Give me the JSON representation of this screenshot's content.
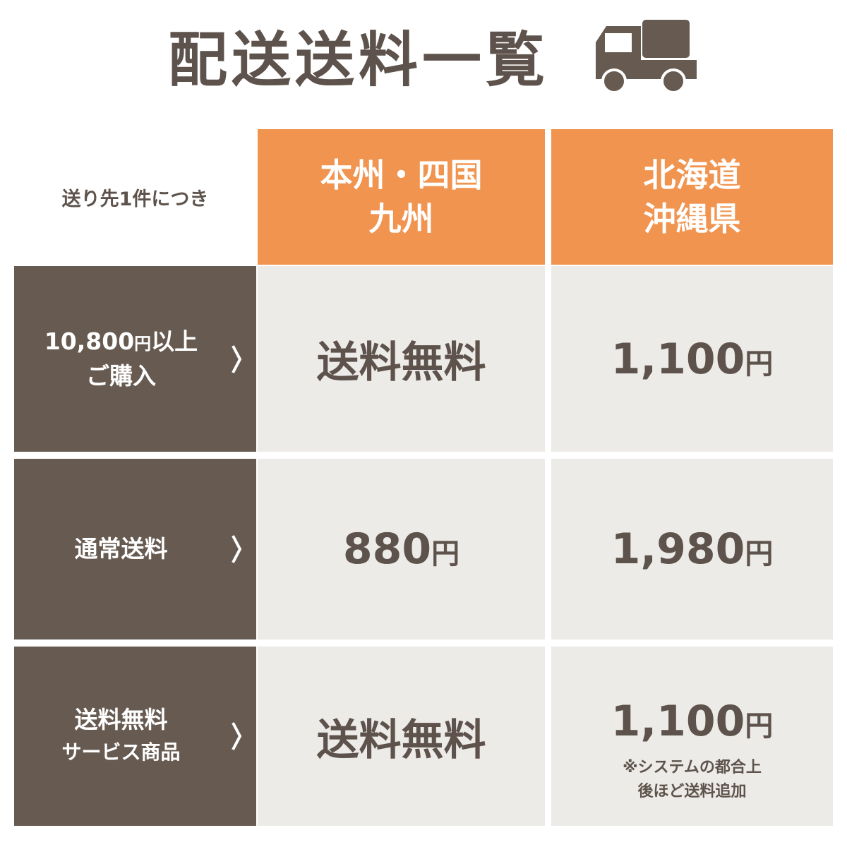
{
  "title": "配送送料一覧",
  "icon": "truck-icon",
  "colors": {
    "dark": "#675a51",
    "orange": "#f0944f",
    "light": "#edebe7",
    "text": "#5e534c"
  },
  "corner_label": "送り先1件につき",
  "columns": [
    {
      "line1": "本州・四国",
      "line2": "九州"
    },
    {
      "line1": "北海道",
      "line2": "沖縄県"
    }
  ],
  "rows": [
    {
      "label_amount": "10,800",
      "label_yen": "円",
      "label_suffix": "以上",
      "label_line2": "ご購入",
      "values": [
        {
          "main": "送料無料",
          "unit": ""
        },
        {
          "main": "1,100",
          "unit": "円"
        }
      ]
    },
    {
      "label_line1": "通常送料",
      "values": [
        {
          "main": "880",
          "unit": "円"
        },
        {
          "main": "1,980",
          "unit": "円"
        }
      ]
    },
    {
      "label_line1": "送料無料",
      "label_line2": "サービス商品",
      "values": [
        {
          "main": "送料無料",
          "unit": ""
        },
        {
          "main": "1,100",
          "unit": "円"
        }
      ],
      "note_line1": "※システムの都合上",
      "note_line2": "後ほど送料追加"
    }
  ]
}
